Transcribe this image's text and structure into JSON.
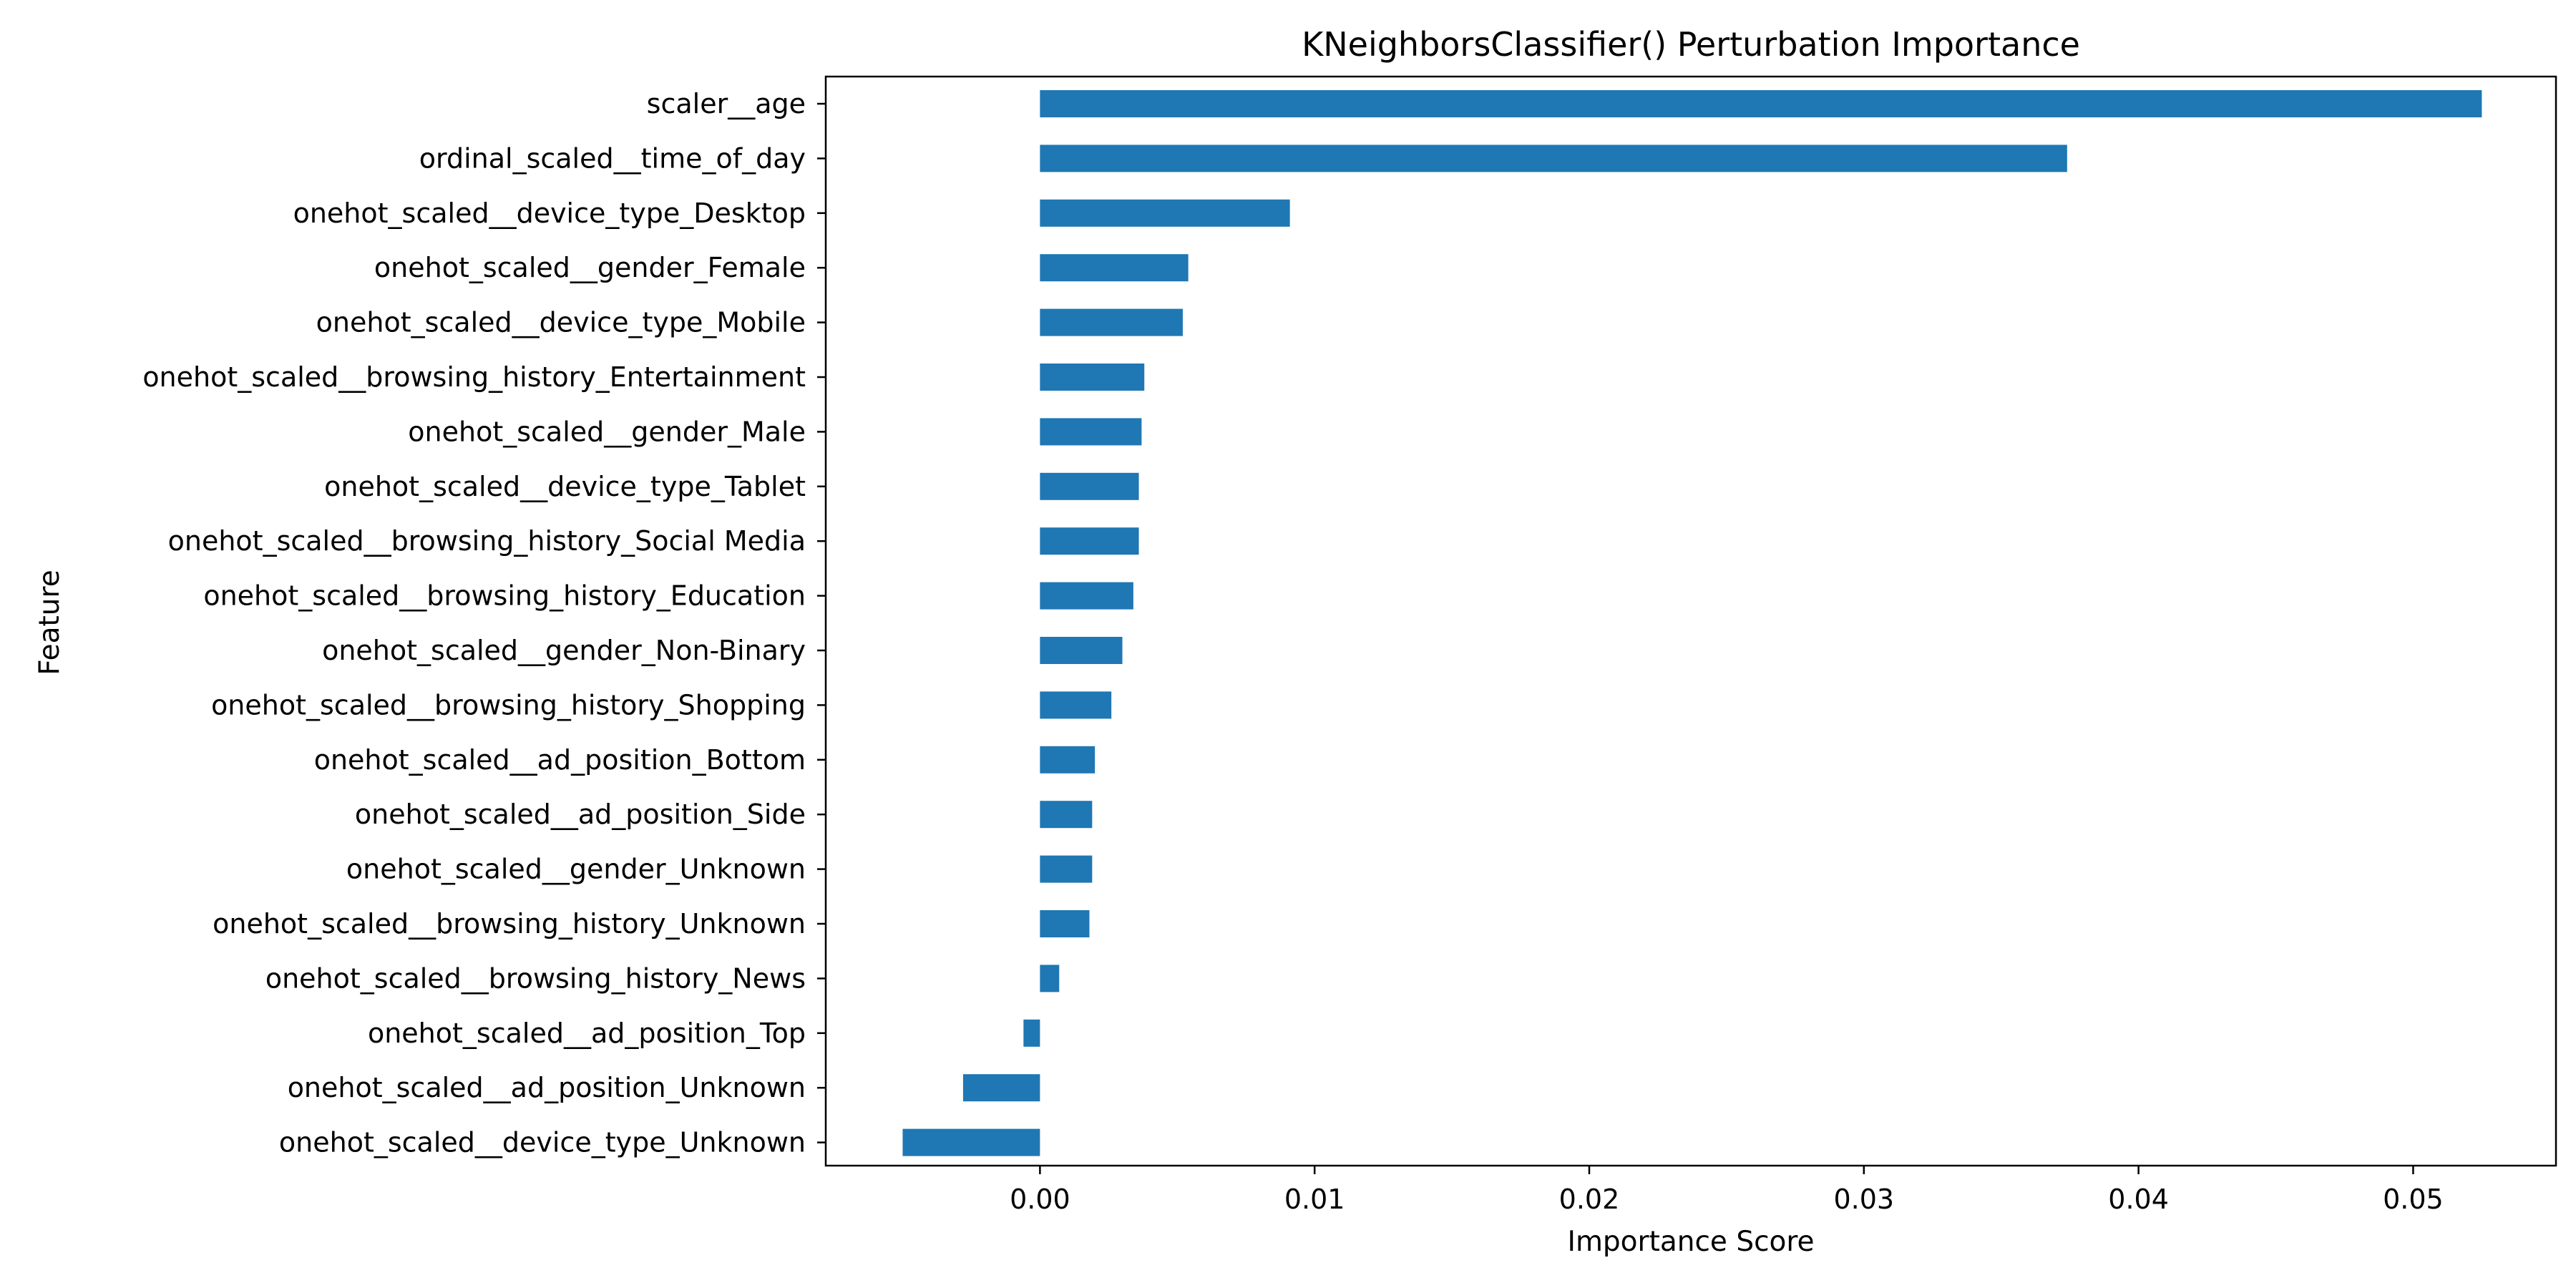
{
  "chart_data": {
    "type": "bar",
    "orientation": "horizontal",
    "title": "KNeighborsClassifier() Perturbation Importance",
    "xlabel": "Importance Score",
    "ylabel": "Feature",
    "xlim": [
      -0.0078,
      0.0552
    ],
    "xticks": [
      0.0,
      0.01,
      0.02,
      0.03,
      0.04,
      0.05
    ],
    "xtick_labels": [
      "0.00",
      "0.01",
      "0.02",
      "0.03",
      "0.04",
      "0.05"
    ],
    "grid": false,
    "bar_color": "#1f77b4",
    "categories": [
      "scaler__age",
      "ordinal_scaled__time_of_day",
      "onehot_scaled__device_type_Desktop",
      "onehot_scaled__gender_Female",
      "onehot_scaled__device_type_Mobile",
      "onehot_scaled__browsing_history_Entertainment",
      "onehot_scaled__gender_Male",
      "onehot_scaled__device_type_Tablet",
      "onehot_scaled__browsing_history_Social Media",
      "onehot_scaled__browsing_history_Education",
      "onehot_scaled__gender_Non-Binary",
      "onehot_scaled__browsing_history_Shopping",
      "onehot_scaled__ad_position_Bottom",
      "onehot_scaled__ad_position_Side",
      "onehot_scaled__gender_Unknown",
      "onehot_scaled__browsing_history_Unknown",
      "onehot_scaled__browsing_history_News",
      "onehot_scaled__ad_position_Top",
      "onehot_scaled__ad_position_Unknown",
      "onehot_scaled__device_type_Unknown"
    ],
    "values": [
      0.0525,
      0.0374,
      0.0091,
      0.0054,
      0.0052,
      0.0038,
      0.0037,
      0.0036,
      0.0036,
      0.0034,
      0.003,
      0.0026,
      0.002,
      0.0019,
      0.0019,
      0.0018,
      0.0007,
      -0.0006,
      -0.0028,
      -0.005
    ]
  }
}
